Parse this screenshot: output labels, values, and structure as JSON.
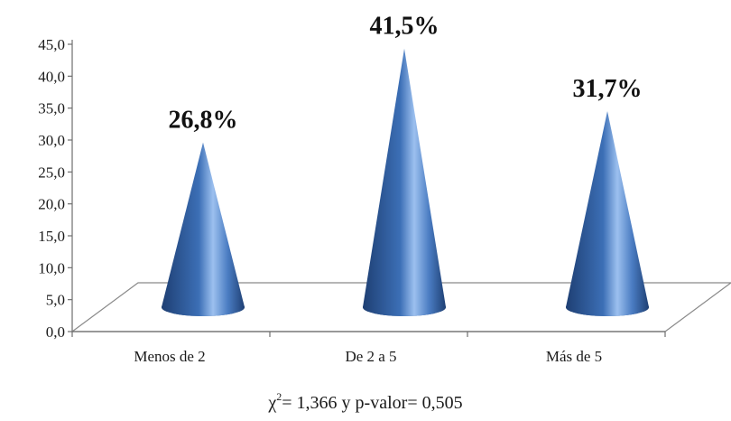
{
  "chart_data": {
    "type": "bar",
    "shape": "cone-3d",
    "categories": [
      "Menos de 2",
      "De 2 a 5",
      "Más de 5"
    ],
    "values": [
      26.8,
      41.5,
      31.7
    ],
    "value_labels": [
      "26,8%",
      "41,5%",
      "31,7%"
    ],
    "y_ticks": [
      "0,0",
      "5,0",
      "10,0",
      "15,0",
      "20,0",
      "25,0",
      "30,0",
      "35,0",
      "40,0",
      "45,0"
    ],
    "ylim": [
      0,
      45
    ],
    "grid": false,
    "legend": "none",
    "colors": {
      "cone_dark": "#1e3f73",
      "cone_mid": "#3c6fb6",
      "cone_light": "#9cc0ef"
    },
    "footnote": {
      "chi": "χ",
      "sup": "2",
      "rest": "= 1,366 y p-valor= 0,505"
    }
  }
}
